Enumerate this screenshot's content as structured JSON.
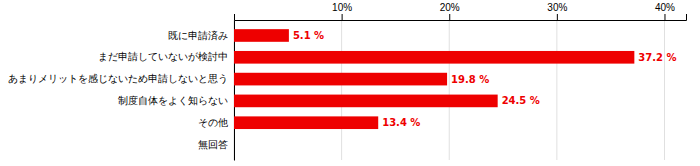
{
  "chart_data": {
    "type": "bar",
    "orientation": "horizontal",
    "categories": [
      "既に申請済み",
      "まだ申請していないが検討中",
      "あまりメリットを感じないため申請しないと思う",
      "制度自体をよく知らない",
      "その他",
      "無回答"
    ],
    "values": [
      5.1,
      37.2,
      19.8,
      24.5,
      13.4,
      0.0
    ],
    "value_labels": [
      "5.1 %",
      "37.2 %",
      "19.8 %",
      "24.5 %",
      "13.4 %",
      null
    ],
    "data_labels": true,
    "color": "#ee0000",
    "xlim": [
      0,
      42
    ],
    "xticks": [
      {
        "value": 0,
        "label": null
      },
      {
        "value": 10,
        "label": "10%"
      },
      {
        "value": 20,
        "label": "20%"
      },
      {
        "value": 30,
        "label": "30%"
      },
      {
        "value": 40,
        "label": "40%"
      }
    ],
    "grid": true
  }
}
